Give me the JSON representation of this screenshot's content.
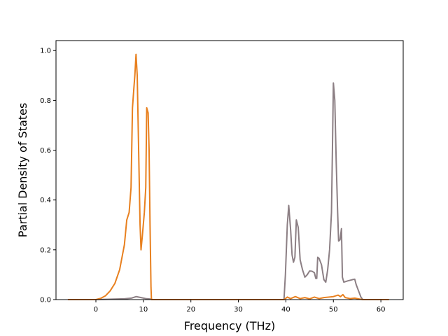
{
  "chart_data": {
    "type": "line",
    "title": "",
    "xlabel": "Frequency (THz)",
    "ylabel": "Partial Density of States",
    "xlim": [
      -8.4,
      64.7
    ],
    "ylim": [
      0.0,
      1.04
    ],
    "xticks": [
      0,
      10,
      20,
      30,
      40,
      50,
      60
    ],
    "yticks": [
      0.0,
      0.2,
      0.4,
      0.6,
      0.8,
      1.0
    ],
    "grid": false,
    "legend": "none",
    "series": [
      {
        "color": "#8c7f84",
        "points": [
          [
            -5.9,
            0
          ],
          [
            0,
            0
          ],
          [
            6,
            0.003
          ],
          [
            7.5,
            0.006
          ],
          [
            8.5,
            0.012
          ],
          [
            9.5,
            0.008
          ],
          [
            10.5,
            0.004
          ],
          [
            11.5,
            0.002
          ],
          [
            12,
            0
          ],
          [
            39.6,
            0
          ],
          [
            39.9,
            0.1
          ],
          [
            40.3,
            0.3
          ],
          [
            40.6,
            0.378
          ],
          [
            41,
            0.28
          ],
          [
            41.3,
            0.18
          ],
          [
            41.6,
            0.15
          ],
          [
            41.9,
            0.17
          ],
          [
            42.2,
            0.32
          ],
          [
            42.6,
            0.29
          ],
          [
            43,
            0.16
          ],
          [
            43.5,
            0.12
          ],
          [
            44,
            0.09
          ],
          [
            44.5,
            0.1
          ],
          [
            45,
            0.115
          ],
          [
            45.5,
            0.114
          ],
          [
            46,
            0.108
          ],
          [
            46.3,
            0.085
          ],
          [
            46.5,
            0.085
          ],
          [
            46.7,
            0.17
          ],
          [
            47,
            0.165
          ],
          [
            47.5,
            0.14
          ],
          [
            48,
            0.08
          ],
          [
            48.4,
            0.07
          ],
          [
            48.8,
            0.12
          ],
          [
            49.2,
            0.2
          ],
          [
            49.6,
            0.35
          ],
          [
            49.8,
            0.6
          ],
          [
            50,
            0.87
          ],
          [
            50.3,
            0.8
          ],
          [
            50.6,
            0.55
          ],
          [
            50.9,
            0.35
          ],
          [
            51.1,
            0.235
          ],
          [
            51.4,
            0.24
          ],
          [
            51.7,
            0.285
          ],
          [
            51.9,
            0.09
          ],
          [
            52.2,
            0.07
          ],
          [
            53,
            0.075
          ],
          [
            54,
            0.08
          ],
          [
            54.5,
            0.082
          ],
          [
            54.8,
            0.06
          ],
          [
            55.3,
            0.035
          ],
          [
            55.8,
            0.01
          ],
          [
            56.2,
            0
          ],
          [
            61.7,
            0
          ]
        ]
      },
      {
        "color": "#e8801f",
        "points": [
          [
            -5.9,
            0
          ],
          [
            0,
            0
          ],
          [
            1,
            0.005
          ],
          [
            2,
            0.015
          ],
          [
            3,
            0.035
          ],
          [
            4,
            0.065
          ],
          [
            5,
            0.12
          ],
          [
            6,
            0.22
          ],
          [
            6.5,
            0.32
          ],
          [
            7,
            0.35
          ],
          [
            7.4,
            0.45
          ],
          [
            7.7,
            0.77
          ],
          [
            8,
            0.85
          ],
          [
            8.2,
            0.9
          ],
          [
            8.45,
            0.985
          ],
          [
            8.7,
            0.9
          ],
          [
            9,
            0.6
          ],
          [
            9.3,
            0.3
          ],
          [
            9.5,
            0.2
          ],
          [
            9.8,
            0.26
          ],
          [
            10.2,
            0.35
          ],
          [
            10.5,
            0.45
          ],
          [
            10.7,
            0.77
          ],
          [
            11,
            0.75
          ],
          [
            11.2,
            0.6
          ],
          [
            11.4,
            0.3
          ],
          [
            11.6,
            0.05
          ],
          [
            11.7,
            0
          ],
          [
            39.6,
            0
          ],
          [
            40.3,
            0.01
          ],
          [
            41,
            0.004
          ],
          [
            42,
            0.012
          ],
          [
            43,
            0.004
          ],
          [
            44,
            0.008
          ],
          [
            45,
            0.003
          ],
          [
            46,
            0.01
          ],
          [
            47,
            0.004
          ],
          [
            48,
            0.008
          ],
          [
            49,
            0.01
          ],
          [
            50,
            0.012
          ],
          [
            51,
            0.018
          ],
          [
            51.5,
            0.012
          ],
          [
            52,
            0.02
          ],
          [
            52.5,
            0.008
          ],
          [
            53.5,
            0.004
          ],
          [
            54.5,
            0.006
          ],
          [
            55.5,
            0.002
          ],
          [
            56.2,
            0
          ],
          [
            61.7,
            0
          ]
        ]
      }
    ]
  }
}
